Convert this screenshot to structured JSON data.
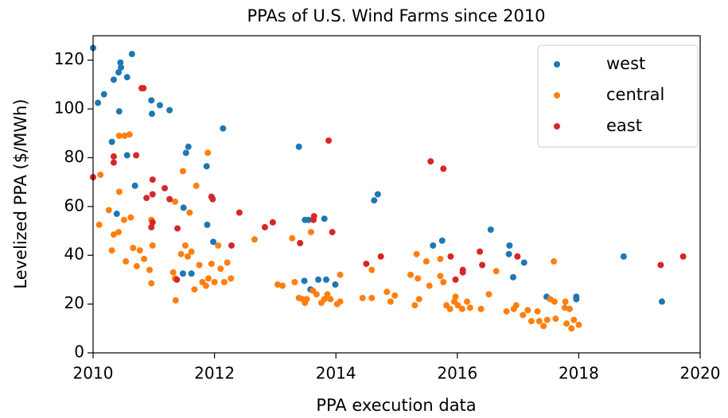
{
  "chart_data": {
    "type": "scatter",
    "title": "PPAs of U.S. Wind Farms since 2010",
    "x_label": "PPA execution data",
    "y_label": "Levelized PPA ($/MWh)",
    "xlim": [
      2010,
      2020
    ],
    "xticks": [
      2010,
      2012,
      2014,
      2016,
      2018,
      2020
    ],
    "ylim": [
      0,
      130
    ],
    "yticks": [
      0,
      20,
      40,
      60,
      80,
      100,
      120
    ],
    "legend": "upper right",
    "series": [
      {
        "name": "west",
        "color": "#1f77b4",
        "x": [
          2010.0,
          2010.08,
          2010.18,
          2010.31,
          2010.34,
          2010.39,
          2010.42,
          2010.45,
          2010.46,
          2010.43,
          2010.56,
          2010.56,
          2010.64,
          2010.69,
          2010.96,
          2010.97,
          2011.1,
          2011.26,
          2011.49,
          2011.48,
          2011.53,
          2011.57,
          2011.62,
          2011.87,
          2011.88,
          2011.98,
          2012.14,
          2013.39,
          2013.48,
          2013.49,
          2013.55,
          2013.58,
          2013.71,
          2013.81,
          2013.84,
          2013.99,
          2014.63,
          2014.69,
          2015.6,
          2015.75,
          2016.55,
          2016.86,
          2016.85,
          2016.92,
          2017.1,
          2017.47,
          2017.96,
          2017.96,
          2018.74,
          2019.37
        ],
        "values": [
          125,
          102.5,
          106,
          86.5,
          112,
          57,
          115,
          119,
          117,
          99,
          113,
          81,
          122.5,
          68.5,
          103.5,
          98,
          101.5,
          99.5,
          59.5,
          32.5,
          82,
          84.5,
          32.5,
          76.5,
          52.5,
          45.5,
          92,
          84.5,
          29.5,
          54.5,
          54.5,
          26,
          30,
          55,
          30,
          28,
          62.5,
          65,
          44,
          46,
          50.5,
          44,
          40.5,
          31,
          37,
          23,
          23,
          22,
          39.5,
          21
        ]
      },
      {
        "name": "central",
        "color": "#ff7f0e",
        "x": [
          2010.12,
          2010.1,
          2010.26,
          2010.31,
          2010.34,
          2010.42,
          2010.43,
          2010.43,
          2010.51,
          2010.52,
          2010.6,
          2010.54,
          2010.62,
          2010.66,
          2010.72,
          2010.77,
          2010.84,
          2010.93,
          2010.96,
          2010.96,
          2010.98,
          2011.32,
          2011.35,
          2011.36,
          2011.35,
          2011.45,
          2011.48,
          2011.52,
          2011.56,
          2011.59,
          2011.62,
          2011.67,
          2011.7,
          2011.75,
          2011.8,
          2011.86,
          2011.89,
          2011.9,
          2011.95,
          2012.0,
          2012.06,
          2012.1,
          2012.16,
          2012.21,
          2012.27,
          2012.66,
          2013.04,
          2013.12,
          2013.28,
          2013.32,
          2013.39,
          2013.45,
          2013.49,
          2013.52,
          2013.59,
          2013.62,
          2013.68,
          2013.76,
          2013.81,
          2013.86,
          2013.91,
          2014.02,
          2014.07,
          2014.07,
          2014.44,
          2014.59,
          2014.59,
          2014.84,
          2014.9,
          2014.97,
          2015.23,
          2015.3,
          2015.33,
          2015.35,
          2015.37,
          2015.49,
          2015.54,
          2015.72,
          2015.72,
          2015.77,
          2015.82,
          2015.88,
          2015.95,
          2015.97,
          2016.01,
          2016.08,
          2016.16,
          2016.21,
          2016.39,
          2016.52,
          2016.64,
          2016.81,
          2016.93,
          2016.97,
          2016.99,
          2017.08,
          2017.16,
          2017.22,
          2017.32,
          2017.35,
          2017.42,
          2017.48,
          2017.53,
          2017.59,
          2017.6,
          2017.77,
          2017.8,
          2017.85,
          2017.88,
          2017.92,
          2018.0,
          2017.78,
          2017.62
        ],
        "values": [
          73,
          52.5,
          58.5,
          42,
          48.5,
          49.5,
          66,
          89,
          54.5,
          89,
          89.5,
          37.5,
          55.5,
          43,
          35.5,
          42,
          38.5,
          34,
          28.5,
          54.5,
          44,
          33,
          30.5,
          21.5,
          62,
          40.5,
          74.5,
          44,
          39.5,
          57.5,
          41.5,
          26,
          68.5,
          36,
          29,
          27.5,
          82,
          30.5,
          36.5,
          29,
          44,
          34.5,
          29,
          37,
          30.5,
          46.5,
          28,
          27.5,
          47,
          29,
          22.5,
          22,
          20.5,
          22,
          49.5,
          25.5,
          24,
          20.5,
          22,
          24,
          22,
          20,
          32,
          21,
          22.5,
          22.5,
          34,
          25,
          21,
          23.5,
          32,
          19.5,
          40.5,
          30.5,
          22,
          37.5,
          27.5,
          31.5,
          38.5,
          29,
          19.5,
          18,
          21,
          23,
          19.5,
          18,
          21,
          18.5,
          18,
          24,
          33.5,
          17,
          18,
          19.5,
          39.5,
          15.5,
          17.5,
          13,
          17,
          13,
          11,
          13.5,
          22,
          37.5,
          21,
          18.5,
          12,
          18,
          10,
          13.5,
          11.5,
          21,
          14
        ]
      },
      {
        "name": "east",
        "color": "#d62728",
        "x": [
          2010.0,
          2010.34,
          2010.34,
          2010.71,
          2010.8,
          2010.83,
          2010.88,
          2010.98,
          2010.98,
          2010.98,
          2010.96,
          2011.18,
          2011.26,
          2011.38,
          2011.39,
          2011.95,
          2011.97,
          2012.28,
          2012.41,
          2012.83,
          2012.96,
          2013.41,
          2013.63,
          2013.64,
          2013.88,
          2013.94,
          2014.5,
          2014.74,
          2015.56,
          2015.77,
          2015.89,
          2015.97,
          2016.09,
          2016.09,
          2016.37,
          2016.41,
          2016.99,
          2019.35,
          2019.72
        ],
        "values": [
          72,
          80.5,
          78,
          81,
          108.5,
          108.5,
          63.5,
          71,
          65,
          53.5,
          51.5,
          67.5,
          63,
          30,
          51,
          64,
          63,
          44,
          57.5,
          51.5,
          53.5,
          45,
          54.5,
          56,
          87,
          49.5,
          36.5,
          39.5,
          78.5,
          75.5,
          39.5,
          30,
          34,
          33,
          41.5,
          36,
          39.5,
          36,
          39.5
        ]
      }
    ]
  }
}
